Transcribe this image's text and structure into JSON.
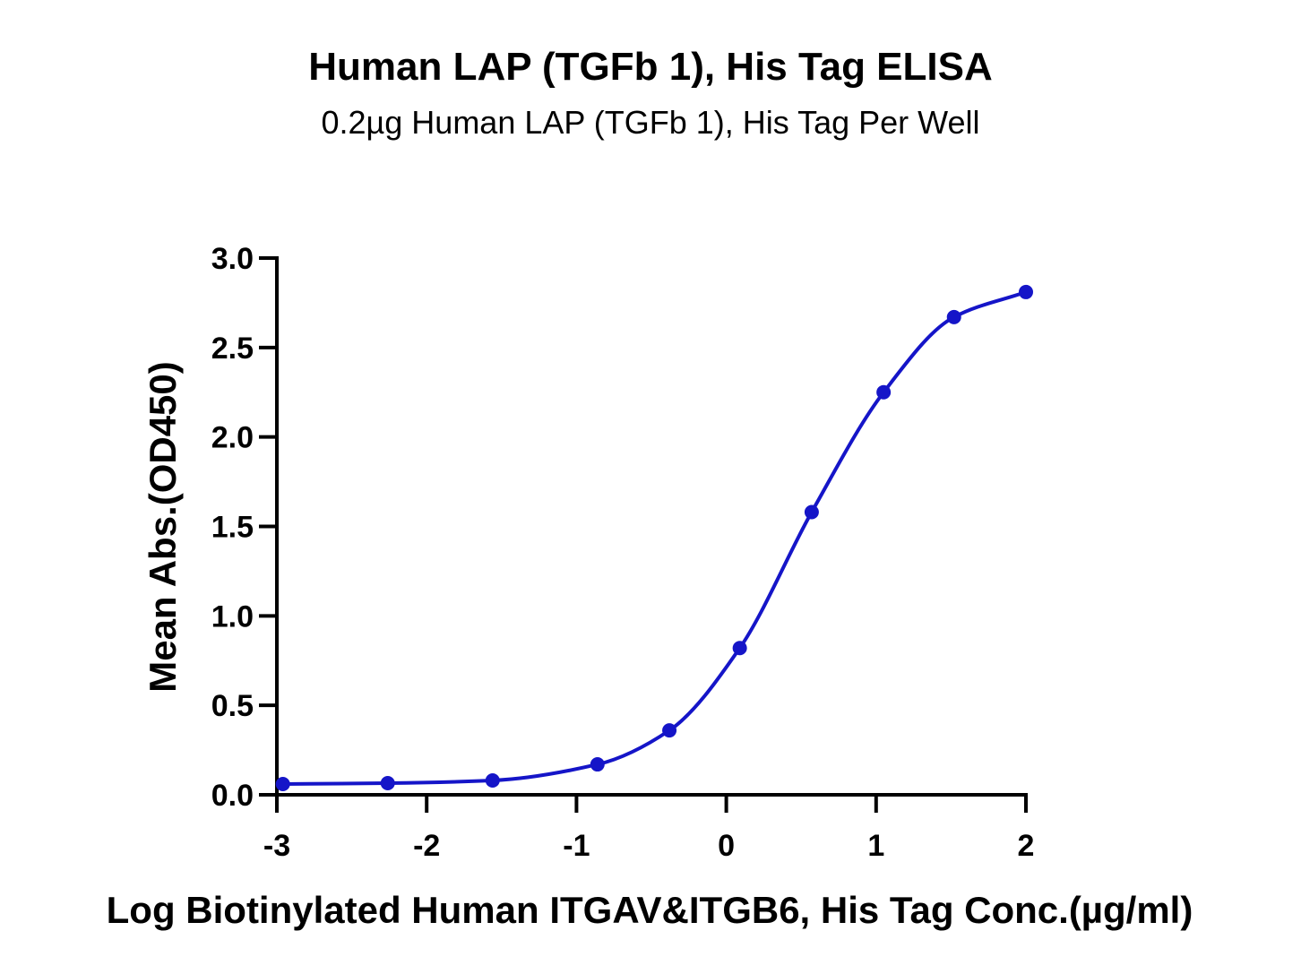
{
  "chart_data": {
    "type": "scatter",
    "title": "Human LAP (TGFb 1), His Tag ELISA",
    "subtitle": "0.2µg Human LAP (TGFb 1), His Tag Per Well",
    "xlabel": "Log Biotinylated Human ITGAV&ITGB6, His Tag Conc.(µg/ml)",
    "ylabel": "Mean Abs.(OD450)",
    "xlim": [
      -3,
      2
    ],
    "ylim": [
      0,
      3.0
    ],
    "x_ticks": [
      "-3",
      "-2",
      "-1",
      "0",
      "1",
      "2"
    ],
    "y_ticks": [
      "0.0",
      "0.5",
      "1.0",
      "1.5",
      "2.0",
      "2.5",
      "3.0"
    ],
    "grid": false,
    "legend": "none",
    "series": [
      {
        "color": "#1515c8",
        "x": [
          -2.96,
          -2.26,
          -1.56,
          -0.86,
          -0.38,
          0.09,
          0.57,
          1.05,
          1.52,
          2.0
        ],
        "y": [
          0.06,
          0.065,
          0.08,
          0.17,
          0.36,
          0.82,
          1.58,
          2.25,
          2.67,
          2.81
        ]
      }
    ]
  }
}
